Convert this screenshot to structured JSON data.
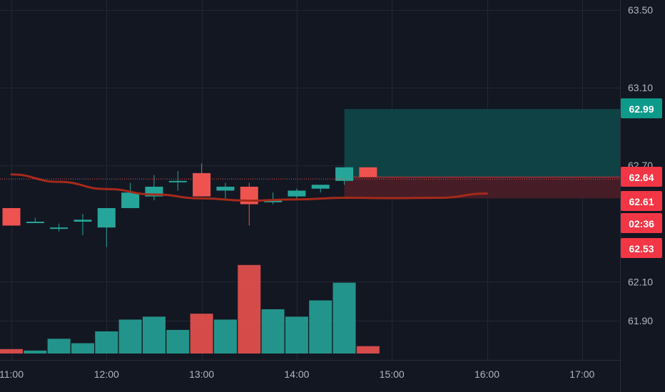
{
  "colors": {
    "background": "#131722",
    "grid": "#232734",
    "axis_text": "#b2b5be",
    "up": "#26a69a",
    "down": "#ef5350",
    "ma": "#a52a1a",
    "target_zone": "#0f4a4a",
    "stop_zone": "#4d1e27",
    "badge_target": "#0e9a8a",
    "badge_red": "#f23645"
  },
  "chart_data": {
    "type": "candlestick",
    "price_axis": {
      "ticks": [
        63.5,
        63.1,
        62.7,
        62.1,
        61.9
      ],
      "tick_labels": [
        "63.50",
        "63.10",
        "62.70",
        "62.10",
        "61.90"
      ]
    },
    "time_axis": {
      "tick_labels": [
        "11:00",
        "12:00",
        "13:00",
        "14:00",
        "15:00",
        "16:00",
        "17:00"
      ]
    },
    "candles": [
      {
        "time": "11:00",
        "open": 62.48,
        "high": 62.48,
        "low": 62.39,
        "close": 62.39
      },
      {
        "time": "11:15",
        "open": 62.41,
        "high": 62.43,
        "low": 62.41,
        "close": 62.41
      },
      {
        "time": "11:30",
        "open": 62.38,
        "high": 62.4,
        "low": 62.36,
        "close": 62.38
      },
      {
        "time": "11:45",
        "open": 62.41,
        "high": 62.45,
        "low": 62.34,
        "close": 62.42
      },
      {
        "time": "12:00",
        "open": 62.38,
        "high": 62.48,
        "low": 62.28,
        "close": 62.48
      },
      {
        "time": "12:15",
        "open": 62.48,
        "high": 62.61,
        "low": 62.48,
        "close": 62.56
      },
      {
        "time": "12:30",
        "open": 62.54,
        "high": 62.65,
        "low": 62.52,
        "close": 62.59
      },
      {
        "time": "12:45",
        "open": 62.62,
        "high": 62.67,
        "low": 62.57,
        "close": 62.62
      },
      {
        "time": "13:00",
        "open": 62.66,
        "high": 62.71,
        "low": 62.54,
        "close": 62.54
      },
      {
        "time": "13:15",
        "open": 62.57,
        "high": 62.61,
        "low": 62.53,
        "close": 62.59
      },
      {
        "time": "13:30",
        "open": 62.59,
        "high": 62.61,
        "low": 62.39,
        "close": 62.5
      },
      {
        "time": "13:45",
        "open": 62.51,
        "high": 62.56,
        "low": 62.5,
        "close": 62.52
      },
      {
        "time": "14:00",
        "open": 62.54,
        "high": 62.58,
        "low": 62.52,
        "close": 62.57
      },
      {
        "time": "14:15",
        "open": 62.58,
        "high": 62.6,
        "low": 62.56,
        "close": 62.6
      },
      {
        "time": "14:30",
        "open": 62.62,
        "high": 62.69,
        "low": 62.6,
        "close": 62.69
      },
      {
        "time": "14:45",
        "open": 62.69,
        "high": 62.69,
        "low": 62.64,
        "close": 62.64
      }
    ],
    "volume": [
      {
        "time": "11:00",
        "direction": "down",
        "value": 3
      },
      {
        "time": "11:15",
        "direction": "up",
        "value": 2
      },
      {
        "time": "11:30",
        "direction": "up",
        "value": 10
      },
      {
        "time": "11:45",
        "direction": "up",
        "value": 7
      },
      {
        "time": "12:00",
        "direction": "up",
        "value": 15
      },
      {
        "time": "12:15",
        "direction": "up",
        "value": 23
      },
      {
        "time": "12:30",
        "direction": "up",
        "value": 25
      },
      {
        "time": "12:45",
        "direction": "up",
        "value": 16
      },
      {
        "time": "13:00",
        "direction": "down",
        "value": 27
      },
      {
        "time": "13:15",
        "direction": "up",
        "value": 23
      },
      {
        "time": "13:30",
        "direction": "down",
        "value": 60
      },
      {
        "time": "13:45",
        "direction": "up",
        "value": 30
      },
      {
        "time": "14:00",
        "direction": "up",
        "value": 25
      },
      {
        "time": "14:15",
        "direction": "up",
        "value": 36
      },
      {
        "time": "14:30",
        "direction": "up",
        "value": 48
      },
      {
        "time": "14:45",
        "direction": "down",
        "value": 5
      }
    ],
    "moving_average": [
      {
        "time": "11:00",
        "value": 62.653
      },
      {
        "time": "11:30",
        "value": 62.615
      },
      {
        "time": "12:00",
        "value": 62.578
      },
      {
        "time": "12:30",
        "value": 62.55
      },
      {
        "time": "13:00",
        "value": 62.53
      },
      {
        "time": "13:30",
        "value": 62.518
      },
      {
        "time": "14:00",
        "value": 62.525
      },
      {
        "time": "14:30",
        "value": 62.533
      },
      {
        "time": "15:00",
        "value": 62.531
      },
      {
        "time": "15:30",
        "value": 62.533
      },
      {
        "time": "16:00",
        "value": 62.555
      }
    ],
    "position": {
      "start_time": "14:30",
      "end_time": "17:30",
      "entry": 62.64,
      "target": 62.99,
      "stop": 62.53
    },
    "last_price": 62.63,
    "badges": [
      {
        "label": "62.99",
        "kind": "target"
      },
      {
        "label": "62.64",
        "kind": "red"
      },
      {
        "label": "62.61",
        "kind": "red"
      },
      {
        "label": "02:36",
        "kind": "red"
      },
      {
        "label": "62.53",
        "kind": "red"
      }
    ]
  }
}
